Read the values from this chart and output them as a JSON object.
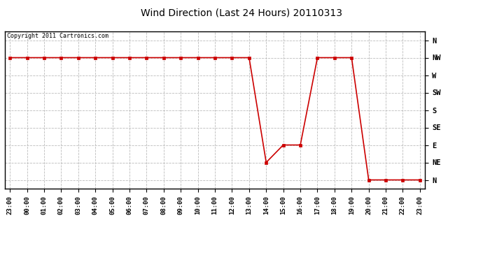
{
  "title": "Wind Direction (Last 24 Hours) 20110313",
  "copyright_text": "Copyright 2011 Cartronics.com",
  "line_color": "#cc0000",
  "background_color": "#ffffff",
  "plot_bg_color": "#ffffff",
  "grid_color": "#bbbbbb",
  "y_labels": [
    "N",
    "NW",
    "W",
    "SW",
    "S",
    "SE",
    "E",
    "NE",
    "N"
  ],
  "y_ticks": [
    8,
    7,
    6,
    5,
    4,
    3,
    2,
    1,
    0
  ],
  "x_labels": [
    "23:00",
    "00:00",
    "01:00",
    "02:00",
    "03:00",
    "04:00",
    "05:00",
    "06:00",
    "07:00",
    "08:00",
    "09:00",
    "10:00",
    "11:00",
    "12:00",
    "13:00",
    "14:00",
    "15:00",
    "16:00",
    "17:00",
    "18:00",
    "19:00",
    "20:00",
    "21:00",
    "22:00",
    "23:00"
  ],
  "data_x": [
    0,
    1,
    2,
    3,
    4,
    5,
    6,
    7,
    8,
    9,
    10,
    11,
    12,
    13,
    14,
    15,
    16,
    17,
    18,
    19,
    20,
    21,
    22,
    23,
    24
  ],
  "data_y": [
    7,
    7,
    7,
    7,
    7,
    7,
    7,
    7,
    7,
    7,
    7,
    7,
    7,
    7,
    7,
    1,
    2,
    2,
    7,
    7,
    7,
    0,
    0,
    0,
    0
  ]
}
